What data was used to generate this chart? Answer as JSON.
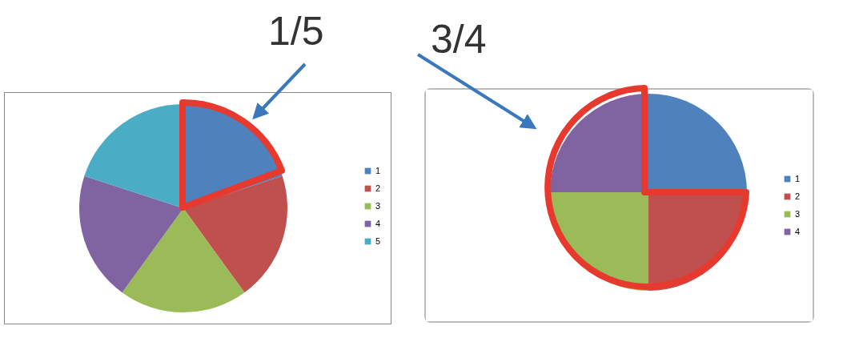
{
  "chart_data": [
    {
      "type": "pie",
      "annotations": [
        "1/5"
      ],
      "categories": [
        "1",
        "2",
        "3",
        "4",
        "5"
      ],
      "values": [
        20,
        20,
        20,
        20,
        20
      ],
      "colors": [
        "#4f81bd",
        "#c0504d",
        "#9bbb59",
        "#8064a2",
        "#4bacc6"
      ],
      "legend": "right"
    },
    {
      "type": "pie",
      "annotations": [
        "3/4"
      ],
      "categories": [
        "1",
        "2",
        "3",
        "4"
      ],
      "values": [
        25,
        25,
        25,
        25
      ],
      "colors": [
        "#4f81bd",
        "#c0504d",
        "#9bbb59",
        "#8064a2"
      ],
      "legend": "right"
    }
  ]
}
